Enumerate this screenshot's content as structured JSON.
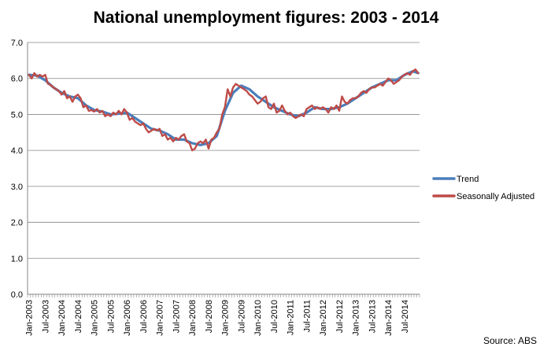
{
  "chart_data": {
    "type": "line",
    "title": "National unemployment figures: 2003 - 2014",
    "xlabel": "",
    "ylabel": "",
    "ylim": [
      0,
      7
    ],
    "yticks": [
      "0.0",
      "1.0",
      "2.0",
      "3.0",
      "4.0",
      "5.0",
      "6.0",
      "7.0"
    ],
    "grid": true,
    "legend_position": "right",
    "x_tick_labels": [
      "Jan-2003",
      "Jul-2003",
      "Jan-2004",
      "Jul-2004",
      "Jan-2005",
      "Jul-2005",
      "Jan-2006",
      "Jul-2006",
      "Jan-2007",
      "Jul-2007",
      "Jan-2008",
      "Jul-2008",
      "Jan-2009",
      "Jul-2009",
      "Jan-2010",
      "Jul-2010",
      "Jan-2011",
      "Jul-2011",
      "Jan-2012",
      "Jul-2012",
      "Jan-2013",
      "Jul-2013",
      "Jan-2014",
      "Jul-2014"
    ],
    "series": [
      {
        "name": "Trend",
        "color": "#4a7ebb",
        "points": [
          [
            "Jan-2003",
            6.1
          ],
          [
            "Apr-2003",
            6.08
          ],
          [
            "Jul-2003",
            5.95
          ],
          [
            "Oct-2003",
            5.75
          ],
          [
            "Jan-2004",
            5.6
          ],
          [
            "Apr-2004",
            5.5
          ],
          [
            "Jul-2004",
            5.45
          ],
          [
            "Oct-2004",
            5.25
          ],
          [
            "Jan-2005",
            5.12
          ],
          [
            "Apr-2005",
            5.08
          ],
          [
            "Jul-2005",
            5.0
          ],
          [
            "Oct-2005",
            5.02
          ],
          [
            "Jan-2006",
            5.05
          ],
          [
            "Apr-2006",
            4.9
          ],
          [
            "Jul-2006",
            4.75
          ],
          [
            "Oct-2006",
            4.6
          ],
          [
            "Jan-2007",
            4.55
          ],
          [
            "Apr-2007",
            4.45
          ],
          [
            "Jul-2007",
            4.3
          ],
          [
            "Oct-2007",
            4.3
          ],
          [
            "Jan-2008",
            4.2
          ],
          [
            "Apr-2008",
            4.15
          ],
          [
            "Jul-2008",
            4.2
          ],
          [
            "Oct-2008",
            4.4
          ],
          [
            "Jan-2009",
            5.1
          ],
          [
            "Apr-2009",
            5.6
          ],
          [
            "Jul-2009",
            5.8
          ],
          [
            "Oct-2009",
            5.7
          ],
          [
            "Jan-2010",
            5.5
          ],
          [
            "Apr-2010",
            5.35
          ],
          [
            "Jul-2010",
            5.2
          ],
          [
            "Oct-2010",
            5.1
          ],
          [
            "Jan-2011",
            5.0
          ],
          [
            "Apr-2011",
            4.95
          ],
          [
            "Jul-2011",
            5.05
          ],
          [
            "Oct-2011",
            5.2
          ],
          [
            "Jan-2012",
            5.15
          ],
          [
            "Apr-2012",
            5.15
          ],
          [
            "Jul-2012",
            5.2
          ],
          [
            "Oct-2012",
            5.3
          ],
          [
            "Jan-2013",
            5.45
          ],
          [
            "Apr-2013",
            5.6
          ],
          [
            "Jul-2013",
            5.75
          ],
          [
            "Oct-2013",
            5.85
          ],
          [
            "Jan-2014",
            5.95
          ],
          [
            "Apr-2014",
            5.95
          ],
          [
            "Jul-2014",
            6.1
          ],
          [
            "Oct-2014",
            6.2
          ],
          [
            "Dec-2014",
            6.15
          ]
        ]
      },
      {
        "name": "Seasonally Adjusted",
        "color": "#be4b48",
        "points": [
          [
            "Jan-2003",
            6.1
          ],
          [
            "Feb-2003",
            6.0
          ],
          [
            "Mar-2003",
            6.15
          ],
          [
            "Apr-2003",
            6.05
          ],
          [
            "May-2003",
            6.1
          ],
          [
            "Jun-2003",
            6.05
          ],
          [
            "Jul-2003",
            6.1
          ],
          [
            "Aug-2003",
            5.85
          ],
          [
            "Sep-2003",
            5.82
          ],
          [
            "Oct-2003",
            5.75
          ],
          [
            "Nov-2003",
            5.7
          ],
          [
            "Dec-2003",
            5.65
          ],
          [
            "Jan-2004",
            5.55
          ],
          [
            "Feb-2004",
            5.65
          ],
          [
            "Mar-2004",
            5.45
          ],
          [
            "Apr-2004",
            5.5
          ],
          [
            "May-2004",
            5.35
          ],
          [
            "Jun-2004",
            5.5
          ],
          [
            "Jul-2004",
            5.55
          ],
          [
            "Aug-2004",
            5.45
          ],
          [
            "Sep-2004",
            5.2
          ],
          [
            "Oct-2004",
            5.25
          ],
          [
            "Nov-2004",
            5.1
          ],
          [
            "Dec-2004",
            5.12
          ],
          [
            "Jan-2005",
            5.08
          ],
          [
            "Feb-2005",
            5.15
          ],
          [
            "Mar-2005",
            5.05
          ],
          [
            "Apr-2005",
            5.1
          ],
          [
            "May-2005",
            4.95
          ],
          [
            "Jun-2005",
            5.0
          ],
          [
            "Jul-2005",
            4.95
          ],
          [
            "Aug-2005",
            5.05
          ],
          [
            "Sep-2005",
            5.0
          ],
          [
            "Oct-2005",
            5.1
          ],
          [
            "Nov-2005",
            5.0
          ],
          [
            "Dec-2005",
            5.15
          ],
          [
            "Jan-2006",
            5.05
          ],
          [
            "Feb-2006",
            4.85
          ],
          [
            "Mar-2006",
            4.9
          ],
          [
            "Apr-2006",
            4.8
          ],
          [
            "May-2006",
            4.75
          ],
          [
            "Jun-2006",
            4.7
          ],
          [
            "Jul-2006",
            4.75
          ],
          [
            "Aug-2006",
            4.6
          ],
          [
            "Sep-2006",
            4.5
          ],
          [
            "Oct-2006",
            4.55
          ],
          [
            "Nov-2006",
            4.6
          ],
          [
            "Dec-2006",
            4.55
          ],
          [
            "Jan-2007",
            4.6
          ],
          [
            "Feb-2007",
            4.4
          ],
          [
            "Mar-2007",
            4.45
          ],
          [
            "Apr-2007",
            4.3
          ],
          [
            "May-2007",
            4.35
          ],
          [
            "Jun-2007",
            4.25
          ],
          [
            "Jul-2007",
            4.35
          ],
          [
            "Aug-2007",
            4.3
          ],
          [
            "Sep-2007",
            4.4
          ],
          [
            "Oct-2007",
            4.45
          ],
          [
            "Nov-2007",
            4.25
          ],
          [
            "Dec-2007",
            4.2
          ],
          [
            "Jan-2008",
            4.0
          ],
          [
            "Feb-2008",
            4.05
          ],
          [
            "Mar-2008",
            4.2
          ],
          [
            "Apr-2008",
            4.25
          ],
          [
            "May-2008",
            4.2
          ],
          [
            "Jun-2008",
            4.3
          ],
          [
            "Jul-2008",
            4.05
          ],
          [
            "Aug-2008",
            4.3
          ],
          [
            "Sep-2008",
            4.35
          ],
          [
            "Oct-2008",
            4.5
          ],
          [
            "Nov-2008",
            4.6
          ],
          [
            "Dec-2008",
            5.0
          ],
          [
            "Jan-2009",
            5.2
          ],
          [
            "Feb-2009",
            5.7
          ],
          [
            "Mar-2009",
            5.5
          ],
          [
            "Apr-2009",
            5.75
          ],
          [
            "May-2009",
            5.85
          ],
          [
            "Jun-2009",
            5.8
          ],
          [
            "Jul-2009",
            5.75
          ],
          [
            "Aug-2009",
            5.7
          ],
          [
            "Sep-2009",
            5.65
          ],
          [
            "Oct-2009",
            5.55
          ],
          [
            "Nov-2009",
            5.5
          ],
          [
            "Dec-2009",
            5.4
          ],
          [
            "Jan-2010",
            5.3
          ],
          [
            "Feb-2010",
            5.35
          ],
          [
            "Mar-2010",
            5.45
          ],
          [
            "Apr-2010",
            5.5
          ],
          [
            "May-2010",
            5.2
          ],
          [
            "Jun-2010",
            5.15
          ],
          [
            "Jul-2010",
            5.3
          ],
          [
            "Aug-2010",
            5.05
          ],
          [
            "Sep-2010",
            5.1
          ],
          [
            "Oct-2010",
            5.25
          ],
          [
            "Nov-2010",
            5.1
          ],
          [
            "Dec-2010",
            5.0
          ],
          [
            "Jan-2011",
            5.05
          ],
          [
            "Feb-2011",
            4.95
          ],
          [
            "Mar-2011",
            4.9
          ],
          [
            "Apr-2011",
            4.95
          ],
          [
            "May-2011",
            5.0
          ],
          [
            "Jun-2011",
            4.95
          ],
          [
            "Jul-2011",
            5.15
          ],
          [
            "Aug-2011",
            5.2
          ],
          [
            "Sep-2011",
            5.25
          ],
          [
            "Oct-2011",
            5.15
          ],
          [
            "Nov-2011",
            5.2
          ],
          [
            "Dec-2011",
            5.15
          ],
          [
            "Jan-2012",
            5.2
          ],
          [
            "Feb-2012",
            5.15
          ],
          [
            "Mar-2012",
            5.05
          ],
          [
            "Apr-2012",
            5.2
          ],
          [
            "May-2012",
            5.15
          ],
          [
            "Jun-2012",
            5.25
          ],
          [
            "Jul-2012",
            5.1
          ],
          [
            "Aug-2012",
            5.5
          ],
          [
            "Sep-2012",
            5.35
          ],
          [
            "Oct-2012",
            5.3
          ],
          [
            "Nov-2012",
            5.4
          ],
          [
            "Dec-2012",
            5.45
          ],
          [
            "Jan-2013",
            5.45
          ],
          [
            "Feb-2013",
            5.5
          ],
          [
            "Mar-2013",
            5.6
          ],
          [
            "Apr-2013",
            5.65
          ],
          [
            "May-2013",
            5.6
          ],
          [
            "Jun-2013",
            5.7
          ],
          [
            "Jul-2013",
            5.75
          ],
          [
            "Aug-2013",
            5.75
          ],
          [
            "Sep-2013",
            5.8
          ],
          [
            "Oct-2013",
            5.85
          ],
          [
            "Nov-2013",
            5.8
          ],
          [
            "Dec-2013",
            5.9
          ],
          [
            "Jan-2014",
            6.0
          ],
          [
            "Feb-2014",
            5.95
          ],
          [
            "Mar-2014",
            5.85
          ],
          [
            "Apr-2014",
            5.9
          ],
          [
            "May-2014",
            5.95
          ],
          [
            "Jun-2014",
            6.05
          ],
          [
            "Jul-2014",
            6.1
          ],
          [
            "Aug-2014",
            6.15
          ],
          [
            "Sep-2014",
            6.1
          ],
          [
            "Oct-2014",
            6.2
          ],
          [
            "Nov-2014",
            6.25
          ],
          [
            "Dec-2014",
            6.15
          ]
        ]
      }
    ],
    "annotations": [
      "Source: ABS"
    ]
  }
}
